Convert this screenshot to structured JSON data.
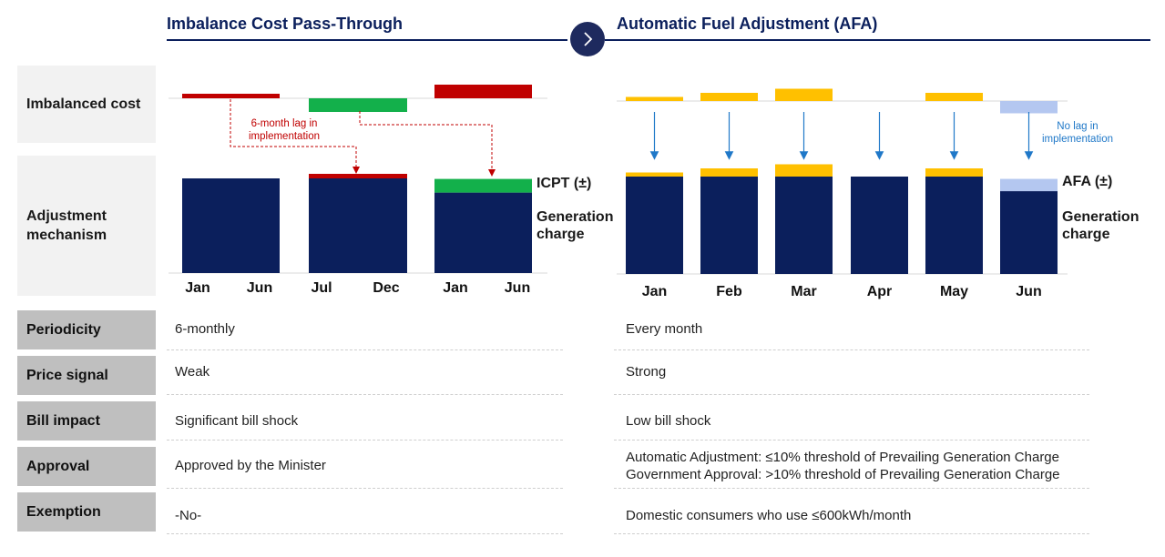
{
  "titles": {
    "left": "Imbalance Cost Pass-Through",
    "right": "Automatic Fuel Adjustment (AFA)"
  },
  "nav": {
    "icon": "chevron-right-icon"
  },
  "colors": {
    "navy": "#0b1f5c",
    "red": "#c00000",
    "green": "#13b04b",
    "gold": "#ffc000",
    "lightblue": "#b4c7f0",
    "arrow_blue": "#1f78c8"
  },
  "row_labels": {
    "imbalanced_cost": "Imbalanced cost",
    "adjustment_mechanism": "Adjustment mechanism",
    "periodicity": "Periodicity",
    "price_signal": "Price signal",
    "bill_impact": "Bill impact",
    "approval": "Approval",
    "exemption": "Exemption"
  },
  "chart_data": [
    {
      "type": "bar",
      "panel": "ICPT",
      "periods": [
        "Jan - Jun",
        "Jul - Dec",
        "Jan - Jun"
      ],
      "tick_labels": [
        "Jan",
        "Jun",
        "Jul",
        "Dec",
        "Jan",
        "Jun"
      ],
      "imbalance_cost": [
        1,
        -3,
        3
      ],
      "generation_charge": [
        20,
        20,
        17
      ],
      "adjustment": [
        0,
        1,
        3
      ],
      "adjustment_colors": [
        "#c00000",
        "#c00000",
        "#13b04b"
      ],
      "imbalance_colors": [
        "#c00000",
        "#13b04b",
        "#c00000"
      ],
      "series_labels": {
        "adjustment": "ICPT (±)",
        "generation": "Generation charge"
      },
      "annotation": "6-month lag in implementation"
    },
    {
      "type": "bar",
      "panel": "AFA",
      "categories": [
        "Jan",
        "Feb",
        "Mar",
        "Apr",
        "May",
        "Jun"
      ],
      "imbalance_cost": [
        1,
        2,
        3,
        0,
        2,
        -3
      ],
      "generation_charge": [
        20,
        20,
        20,
        20,
        20,
        17
      ],
      "adjustment": [
        1,
        2,
        3,
        0,
        2,
        3
      ],
      "adjustment_colors": [
        "#ffc000",
        "#ffc000",
        "#ffc000",
        "#ffc000",
        "#ffc000",
        "#b4c7f0"
      ],
      "imbalance_colors": [
        "#ffc000",
        "#ffc000",
        "#ffc000",
        "#ffc000",
        "#ffc000",
        "#b4c7f0"
      ],
      "series_labels": {
        "adjustment": "AFA (±)",
        "generation": "Generation charge"
      },
      "annotation": "No lag in implementation"
    }
  ],
  "table": {
    "periodicity": {
      "icpt": "6-monthly",
      "afa": "Every month"
    },
    "price_signal": {
      "icpt": "Weak",
      "afa": "Strong"
    },
    "bill_impact": {
      "icpt": "Significant bill shock",
      "afa": "Low bill shock"
    },
    "approval": {
      "icpt": "Approved by the Minister",
      "afa_line1": "Automatic Adjustment: ≤10% threshold of Prevailing Generation Charge",
      "afa_line2": "Government Approval: >10% threshold of Prevailing Generation Charge"
    },
    "exemption": {
      "icpt": "-No-",
      "afa": "Domestic consumers who use ≤600kWh/month"
    }
  }
}
